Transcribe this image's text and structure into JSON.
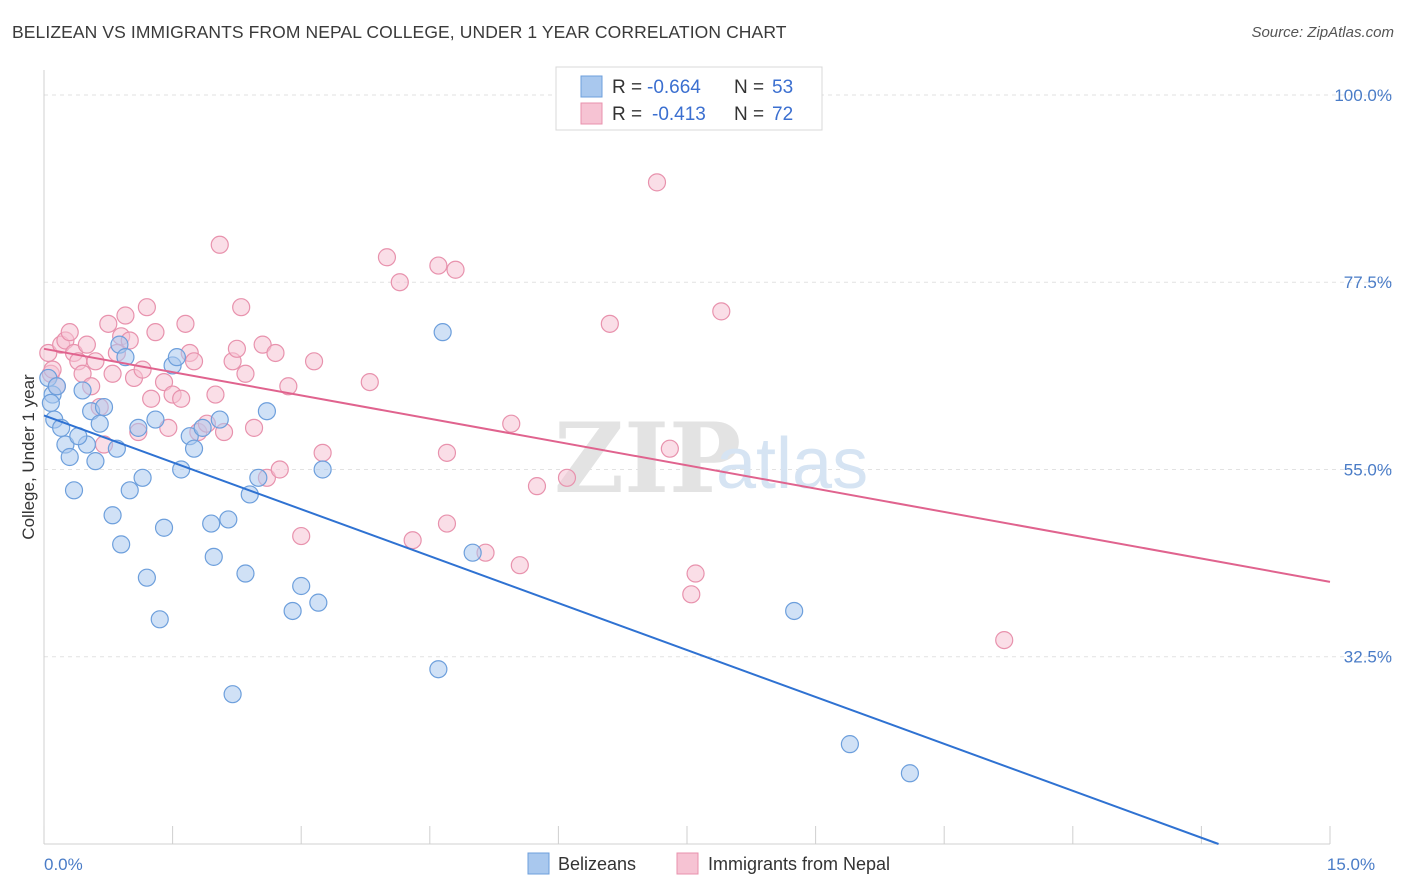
{
  "header": {
    "title": "BELIZEAN VS IMMIGRANTS FROM NEPAL COLLEGE, UNDER 1 YEAR CORRELATION CHART",
    "source": "Source: ZipAtlas.com"
  },
  "watermark": {
    "zip": "ZIP",
    "atlas": "atlas"
  },
  "chart_data": {
    "type": "scatter",
    "title": "BELIZEAN VS IMMIGRANTS FROM NEPAL COLLEGE, UNDER 1 YEAR CORRELATION CHART",
    "xlabel": "",
    "ylabel": "College, Under 1 year",
    "xlim": [
      0,
      15
    ],
    "ylim": [
      10,
      103
    ],
    "x_tick_labels": [
      "0.0%",
      "15.0%"
    ],
    "y_ticks": [
      32.5,
      55.0,
      77.5,
      100.0
    ],
    "y_tick_labels": [
      "32.5%",
      "55.0%",
      "77.5%",
      "100.0%"
    ],
    "grid": true,
    "colors": {
      "blue_fill": "#a9c8ee",
      "blue_stroke": "#6d9fdc",
      "blue_line": "#2f72d2",
      "pink_fill": "#f6c3d3",
      "pink_stroke": "#e892ad",
      "pink_line": "#e0638e"
    },
    "legend": {
      "entries": [
        {
          "r_label": "R =",
          "r_value": "-0.664",
          "n_label": "N =",
          "n_value": "53",
          "color": "blue"
        },
        {
          "r_label": "R =",
          "r_value": "-0.413",
          "n_label": "N =",
          "n_value": "72",
          "color": "pink"
        }
      ]
    },
    "series": [
      {
        "name": "Belizeans",
        "color": "blue",
        "trend": {
          "x": [
            0,
            13.7
          ],
          "y": [
            61.5,
            10
          ]
        },
        "points": [
          [
            0.05,
            66
          ],
          [
            0.1,
            64
          ],
          [
            0.15,
            65
          ],
          [
            0.12,
            61
          ],
          [
            0.2,
            60
          ],
          [
            0.25,
            58
          ],
          [
            0.3,
            56.5
          ],
          [
            0.35,
            52.5
          ],
          [
            0.45,
            64.5
          ],
          [
            0.5,
            58
          ],
          [
            0.55,
            62
          ],
          [
            0.6,
            56
          ],
          [
            0.65,
            60.5
          ],
          [
            0.7,
            62.5
          ],
          [
            0.8,
            49.5
          ],
          [
            0.85,
            57.5
          ],
          [
            0.88,
            70
          ],
          [
            0.9,
            46
          ],
          [
            0.95,
            68.5
          ],
          [
            1.0,
            52.5
          ],
          [
            1.1,
            60
          ],
          [
            1.15,
            54
          ],
          [
            1.2,
            42
          ],
          [
            1.3,
            61
          ],
          [
            1.35,
            37
          ],
          [
            1.4,
            48
          ],
          [
            1.5,
            67.5
          ],
          [
            1.55,
            68.5
          ],
          [
            1.6,
            55
          ],
          [
            1.7,
            59
          ],
          [
            1.75,
            57.5
          ],
          [
            1.85,
            60
          ],
          [
            1.95,
            48.5
          ],
          [
            1.98,
            44.5
          ],
          [
            2.05,
            61
          ],
          [
            2.15,
            49
          ],
          [
            2.2,
            28
          ],
          [
            2.35,
            42.5
          ],
          [
            2.4,
            52
          ],
          [
            2.5,
            54
          ],
          [
            2.6,
            62
          ],
          [
            2.9,
            38
          ],
          [
            3.0,
            41
          ],
          [
            3.2,
            39
          ],
          [
            3.25,
            55
          ],
          [
            4.6,
            31
          ],
          [
            4.65,
            71.5
          ],
          [
            5.0,
            45
          ],
          [
            8.75,
            38
          ],
          [
            9.4,
            22
          ],
          [
            10.1,
            18.5
          ],
          [
            0.08,
            63
          ],
          [
            0.4,
            59
          ]
        ]
      },
      {
        "name": "Immigrants from Nepal",
        "color": "pink",
        "trend": {
          "x": [
            0,
            15
          ],
          "y": [
            69.5,
            41.5
          ]
        },
        "points": [
          [
            0.05,
            69
          ],
          [
            0.08,
            66.5
          ],
          [
            0.1,
            67
          ],
          [
            0.15,
            65
          ],
          [
            0.2,
            70
          ],
          [
            0.25,
            70.5
          ],
          [
            0.3,
            71.5
          ],
          [
            0.35,
            69
          ],
          [
            0.4,
            68
          ],
          [
            0.45,
            66.5
          ],
          [
            0.5,
            70
          ],
          [
            0.55,
            65
          ],
          [
            0.6,
            68
          ],
          [
            0.65,
            62.5
          ],
          [
            0.7,
            58
          ],
          [
            0.75,
            72.5
          ],
          [
            0.8,
            66.5
          ],
          [
            0.85,
            69
          ],
          [
            0.9,
            71
          ],
          [
            0.95,
            73.5
          ],
          [
            1.0,
            70.5
          ],
          [
            1.05,
            66
          ],
          [
            1.1,
            59.5
          ],
          [
            1.15,
            67
          ],
          [
            1.2,
            74.5
          ],
          [
            1.25,
            63.5
          ],
          [
            1.3,
            71.5
          ],
          [
            1.4,
            65.5
          ],
          [
            1.45,
            60
          ],
          [
            1.5,
            64
          ],
          [
            1.6,
            63.5
          ],
          [
            1.65,
            72.5
          ],
          [
            1.7,
            69
          ],
          [
            1.75,
            68
          ],
          [
            1.8,
            59.5
          ],
          [
            1.9,
            60.5
          ],
          [
            2.0,
            64
          ],
          [
            2.05,
            82
          ],
          [
            2.1,
            59.5
          ],
          [
            2.2,
            68
          ],
          [
            2.25,
            69.5
          ],
          [
            2.3,
            74.5
          ],
          [
            2.35,
            66.5
          ],
          [
            2.45,
            60
          ],
          [
            2.55,
            70
          ],
          [
            2.6,
            54
          ],
          [
            2.7,
            69
          ],
          [
            2.75,
            55
          ],
          [
            2.85,
            65
          ],
          [
            3.0,
            47
          ],
          [
            3.15,
            68
          ],
          [
            3.25,
            57
          ],
          [
            3.8,
            65.5
          ],
          [
            4.0,
            80.5
          ],
          [
            4.15,
            77.5
          ],
          [
            4.3,
            46.5
          ],
          [
            4.6,
            79.5
          ],
          [
            4.7,
            57
          ],
          [
            4.8,
            79
          ],
          [
            4.7,
            48.5
          ],
          [
            5.15,
            45
          ],
          [
            5.45,
            60.5
          ],
          [
            5.55,
            43.5
          ],
          [
            5.75,
            53
          ],
          [
            6.1,
            54
          ],
          [
            6.6,
            72.5
          ],
          [
            7.15,
            89.5
          ],
          [
            7.3,
            57.5
          ],
          [
            7.55,
            40
          ],
          [
            7.6,
            42.5
          ],
          [
            7.9,
            74
          ],
          [
            11.2,
            34.5
          ]
        ]
      }
    ]
  },
  "bottom_legend": {
    "items": [
      {
        "label": "Belizeans",
        "color": "blue"
      },
      {
        "label": "Immigrants from Nepal",
        "color": "pink"
      }
    ]
  }
}
